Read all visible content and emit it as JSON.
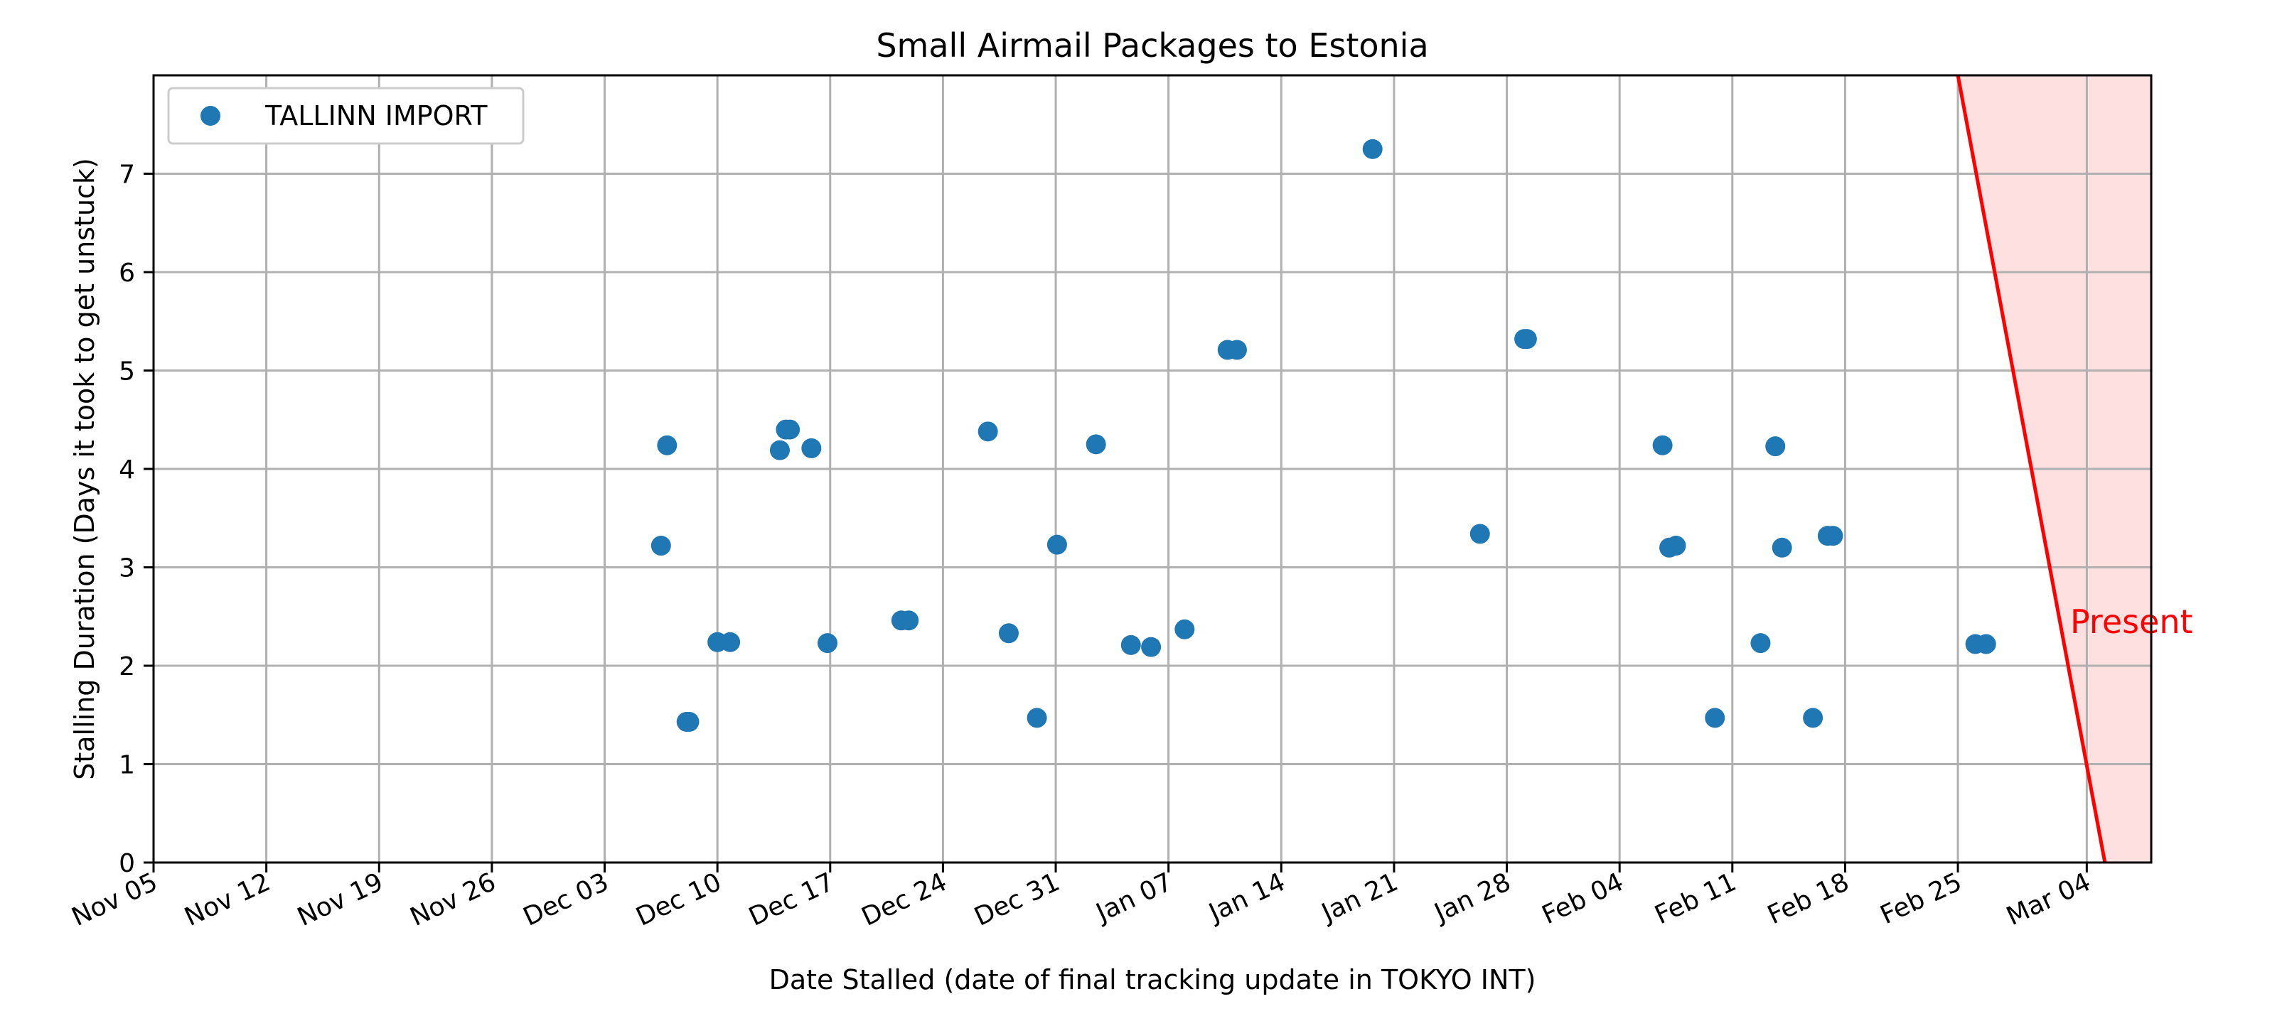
{
  "chart_data": {
    "type": "scatter",
    "title": "Small Airmail Packages to Estonia",
    "xlabel": "Date Stalled (date of final tracking update in TOKYO INT)",
    "ylabel": "Stalling Duration (Days it took to get unstuck)",
    "x_ticks": [
      "Nov 05",
      "Nov 12",
      "Nov 19",
      "Nov 26",
      "Dec 03",
      "Dec 10",
      "Dec 17",
      "Dec 24",
      "Dec 31",
      "Jan 07",
      "Jan 14",
      "Jan 21",
      "Jan 28",
      "Feb 04",
      "Feb 11",
      "Feb 18",
      "Feb 25",
      "Mar 04"
    ],
    "y_ticks": [
      0,
      1,
      2,
      3,
      4,
      5,
      6,
      7
    ],
    "ylim": [
      0,
      8
    ],
    "xlim": [
      "Nov 05",
      "Mar 08"
    ],
    "grid": true,
    "legend": "upper-left",
    "series": [
      {
        "name": "TALLINN IMPORT",
        "color": "#1f77b4",
        "points": [
          {
            "x": "Dec 06 12:00",
            "y": 3.22
          },
          {
            "x": "Dec 06 21:00",
            "y": 4.24
          },
          {
            "x": "Dec 08 02:00",
            "y": 1.43
          },
          {
            "x": "Dec 08 06:00",
            "y": 1.43
          },
          {
            "x": "Dec 10 00:00",
            "y": 2.24
          },
          {
            "x": "Dec 10 19:00",
            "y": 2.24
          },
          {
            "x": "Dec 13 21:00",
            "y": 4.19
          },
          {
            "x": "Dec 14 06:00",
            "y": 4.4
          },
          {
            "x": "Dec 14 12:00",
            "y": 4.4
          },
          {
            "x": "Dec 15 20:00",
            "y": 4.21
          },
          {
            "x": "Dec 16 20:00",
            "y": 2.23
          },
          {
            "x": "Dec 21 10:00",
            "y": 2.46
          },
          {
            "x": "Dec 21 21:00",
            "y": 2.46
          },
          {
            "x": "Dec 26 19:00",
            "y": 4.38
          },
          {
            "x": "Dec 28 02:00",
            "y": 2.33
          },
          {
            "x": "Dec 29 20:00",
            "y": 1.47
          },
          {
            "x": "Dec 31 02:00",
            "y": 3.23
          },
          {
            "x": "Jan 02 12:00",
            "y": 4.25
          },
          {
            "x": "Jan 04 16:00",
            "y": 2.21
          },
          {
            "x": "Jan 05 22:00",
            "y": 2.19
          },
          {
            "x": "Jan 08 00:00",
            "y": 2.37
          },
          {
            "x": "Jan 10 16:00",
            "y": 5.21
          },
          {
            "x": "Jan 11 06:00",
            "y": 5.21
          },
          {
            "x": "Jan 19 16:00",
            "y": 7.25
          },
          {
            "x": "Jan 26 08:00",
            "y": 3.34
          },
          {
            "x": "Jan 29 02:00",
            "y": 5.32
          },
          {
            "x": "Jan 29 06:00",
            "y": 5.32
          },
          {
            "x": "Feb 06 16:00",
            "y": 4.24
          },
          {
            "x": "Feb 07 02:00",
            "y": 3.2
          },
          {
            "x": "Feb 07 12:00",
            "y": 3.22
          },
          {
            "x": "Feb 09 22:00",
            "y": 1.47
          },
          {
            "x": "Feb 12 18:00",
            "y": 2.23
          },
          {
            "x": "Feb 13 16:00",
            "y": 4.23
          },
          {
            "x": "Feb 14 02:00",
            "y": 3.2
          },
          {
            "x": "Feb 16 00:00",
            "y": 1.47
          },
          {
            "x": "Feb 16 22:00",
            "y": 3.32
          },
          {
            "x": "Feb 17 06:00",
            "y": 3.32
          },
          {
            "x": "Feb 26 02:00",
            "y": 2.22
          },
          {
            "x": "Feb 26 18:00",
            "y": 2.22
          }
        ]
      }
    ],
    "present_line": {
      "label": "Present",
      "color": "#ff0000",
      "shade_color": "#ffe0e0",
      "from": {
        "x": "Feb 25",
        "y": 8
      },
      "to": {
        "x": "Mar 05 03:00",
        "y": 0
      }
    }
  }
}
